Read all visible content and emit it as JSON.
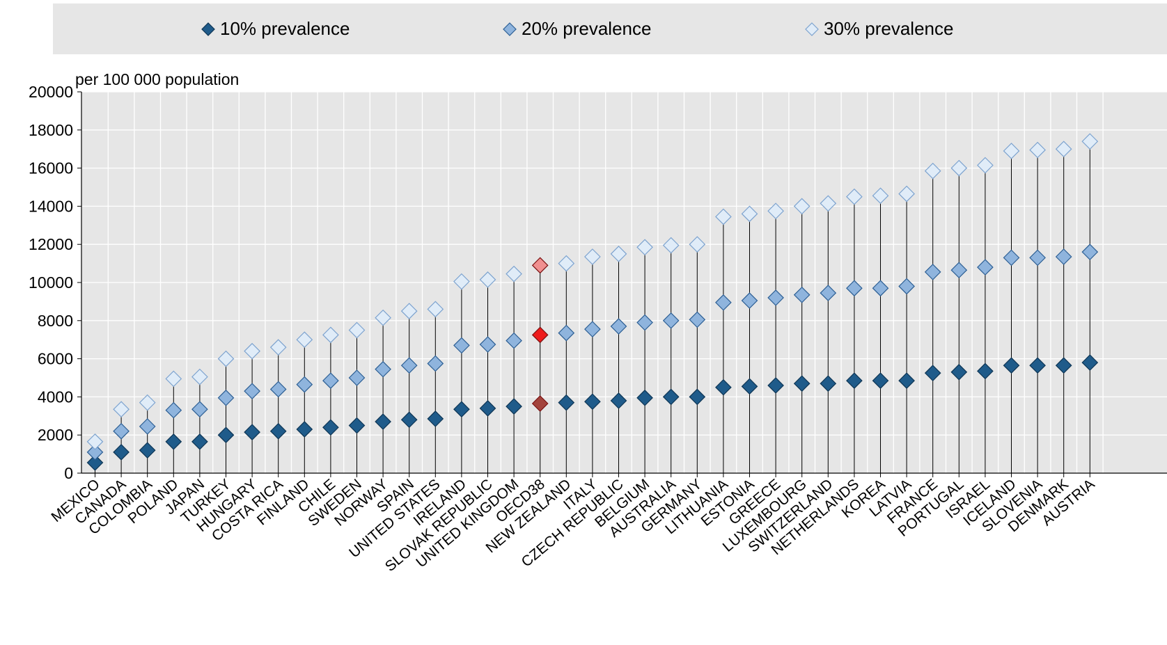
{
  "legend": {
    "items": [
      {
        "label": "10% prevalence",
        "fill": "#1f5b8a",
        "stroke": "#0e3554"
      },
      {
        "label": "20% prevalence",
        "fill": "#8fb4dd",
        "stroke": "#2d5f94"
      },
      {
        "label": "30% prevalence",
        "fill": "#e0ecf8",
        "stroke": "#7da3cf"
      }
    ]
  },
  "chart_data": {
    "type": "scatter",
    "ylabel": "per 100 000 population",
    "ylim": [
      0,
      20000
    ],
    "yticks": [
      "0",
      "2000",
      "4000",
      "6000",
      "8000",
      "10000",
      "12000",
      "14000",
      "16000",
      "18000",
      "20000"
    ],
    "grid": true,
    "categories": [
      "MEXICO",
      "CANADA",
      "COLOMBIA",
      "POLAND",
      "JAPAN",
      "TURKEY",
      "HUNGARY",
      "COSTA RICA",
      "FINLAND",
      "CHILE",
      "SWEDEN",
      "NORWAY",
      "SPAIN",
      "UNITED STATES",
      "IRELAND",
      "SLOVAK REPUBLIC",
      "UNITED KINGDOM",
      "OECD38",
      "NEW ZEALAND",
      "ITALY",
      "CZECH REPUBLIC",
      "BELGIUM",
      "AUSTRALIA",
      "GERMANY",
      "LITHUANIA",
      "ESTONIA",
      "GREECE",
      "LUXEMBOURG",
      "SWITZERLAND",
      "NETHERLANDS",
      "KOREA",
      "LATVIA",
      "FRANCE",
      "PORTUGAL",
      "ISRAEL",
      "ICELAND",
      "SLOVENIA",
      "DENMARK",
      "AUSTRIA"
    ],
    "highlight_category": "OECD38",
    "highlight_colors": {
      "10% prevalence": "#a3433c",
      "20% prevalence": "#ee1c1c",
      "30% prevalence": "#f09090"
    },
    "series": [
      {
        "name": "10% prevalence",
        "values": [
          550,
          1100,
          1200,
          1650,
          1650,
          2000,
          2150,
          2200,
          2300,
          2400,
          2500,
          2700,
          2800,
          2850,
          3350,
          3400,
          3500,
          3650,
          3700,
          3750,
          3800,
          3950,
          4000,
          4000,
          4500,
          4550,
          4600,
          4700,
          4700,
          4850,
          4850,
          4850,
          5250,
          5300,
          5350,
          5650,
          5650,
          5650,
          5800
        ]
      },
      {
        "name": "20% prevalence",
        "values": [
          1100,
          2200,
          2450,
          3300,
          3350,
          3950,
          4300,
          4400,
          4650,
          4850,
          5000,
          5450,
          5650,
          5750,
          6700,
          6750,
          6950,
          7250,
          7350,
          7550,
          7700,
          7900,
          8000,
          8050,
          8950,
          9050,
          9200,
          9350,
          9450,
          9700,
          9700,
          9800,
          10550,
          10650,
          10800,
          11300,
          11300,
          11350,
          11600
        ]
      },
      {
        "name": "30% prevalence",
        "values": [
          1650,
          3350,
          3700,
          4950,
          5050,
          6000,
          6400,
          6600,
          7000,
          7250,
          7500,
          8150,
          8500,
          8600,
          10050,
          10150,
          10450,
          10900,
          11000,
          11350,
          11500,
          11850,
          11950,
          12000,
          13450,
          13600,
          13750,
          14000,
          14150,
          14500,
          14550,
          14650,
          15850,
          16000,
          16150,
          16900,
          16950,
          17000,
          17400
        ]
      }
    ]
  }
}
